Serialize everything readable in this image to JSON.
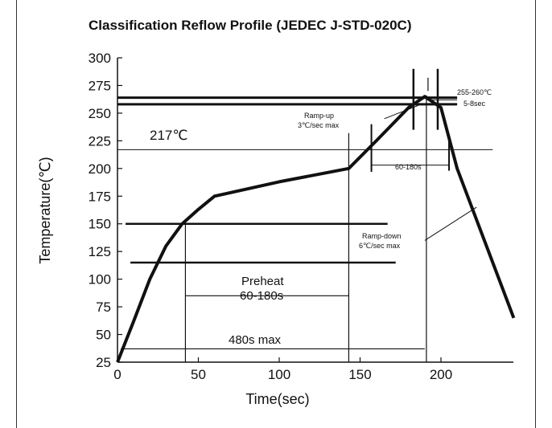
{
  "chart_data": {
    "type": "line",
    "title": "Classification Reflow Profile (JEDEC J-STD-020C)",
    "xlabel": "Time(sec)",
    "ylabel": "Temperature(℃)",
    "xlim": [
      0,
      245
    ],
    "ylim": [
      25,
      300
    ],
    "x_ticks": [
      0,
      50,
      100,
      150,
      200
    ],
    "y_ticks": [
      25,
      50,
      75,
      100,
      125,
      150,
      175,
      200,
      225,
      250,
      275,
      300
    ],
    "grid": false,
    "series": [
      {
        "x": [
          0,
          10,
          20,
          30,
          40,
          50,
          60,
          100,
          143,
          160,
          180,
          190,
          200,
          210,
          245
        ],
        "y": [
          25,
          62,
          100,
          130,
          150,
          163,
          175,
          188,
          200,
          225,
          255,
          265,
          255,
          200,
          65
        ]
      }
    ],
    "annotations": {
      "temp_217": "217℃",
      "peak_range": "255-260℃",
      "peak_time": "5-8sec",
      "ramp_up_1": "Ramp-up",
      "ramp_up_2": "3℃/sec max",
      "time_above": "60-180s",
      "ramp_down_1": "Ramp-down",
      "ramp_down_2": "6℃/sec max",
      "preheat_1": "Preheat",
      "preheat_2": "60-180s",
      "total_time": "480s max"
    }
  }
}
